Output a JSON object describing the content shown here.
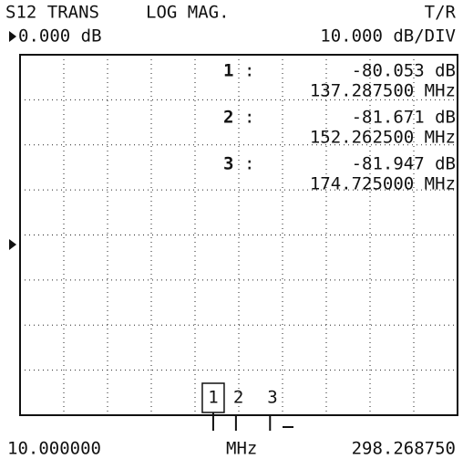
{
  "header": {
    "parameter": "S12 TRANS",
    "format": "LOG MAG.",
    "path": "T/R",
    "reference": "0.000 dB",
    "scale": "10.000 dB/DIV"
  },
  "markers": [
    {
      "number": "1",
      "value": "-80.053 dB",
      "frequency": "137.287500 MHz"
    },
    {
      "number": "2",
      "value": "-81.671 dB",
      "frequency": "152.262500 MHz"
    },
    {
      "number": "3",
      "value": "-81.947 dB",
      "frequency": "174.725000 MHz"
    }
  ],
  "footer": {
    "start": "10.000000",
    "unit": "MHz",
    "stop": "298.268750"
  }
}
